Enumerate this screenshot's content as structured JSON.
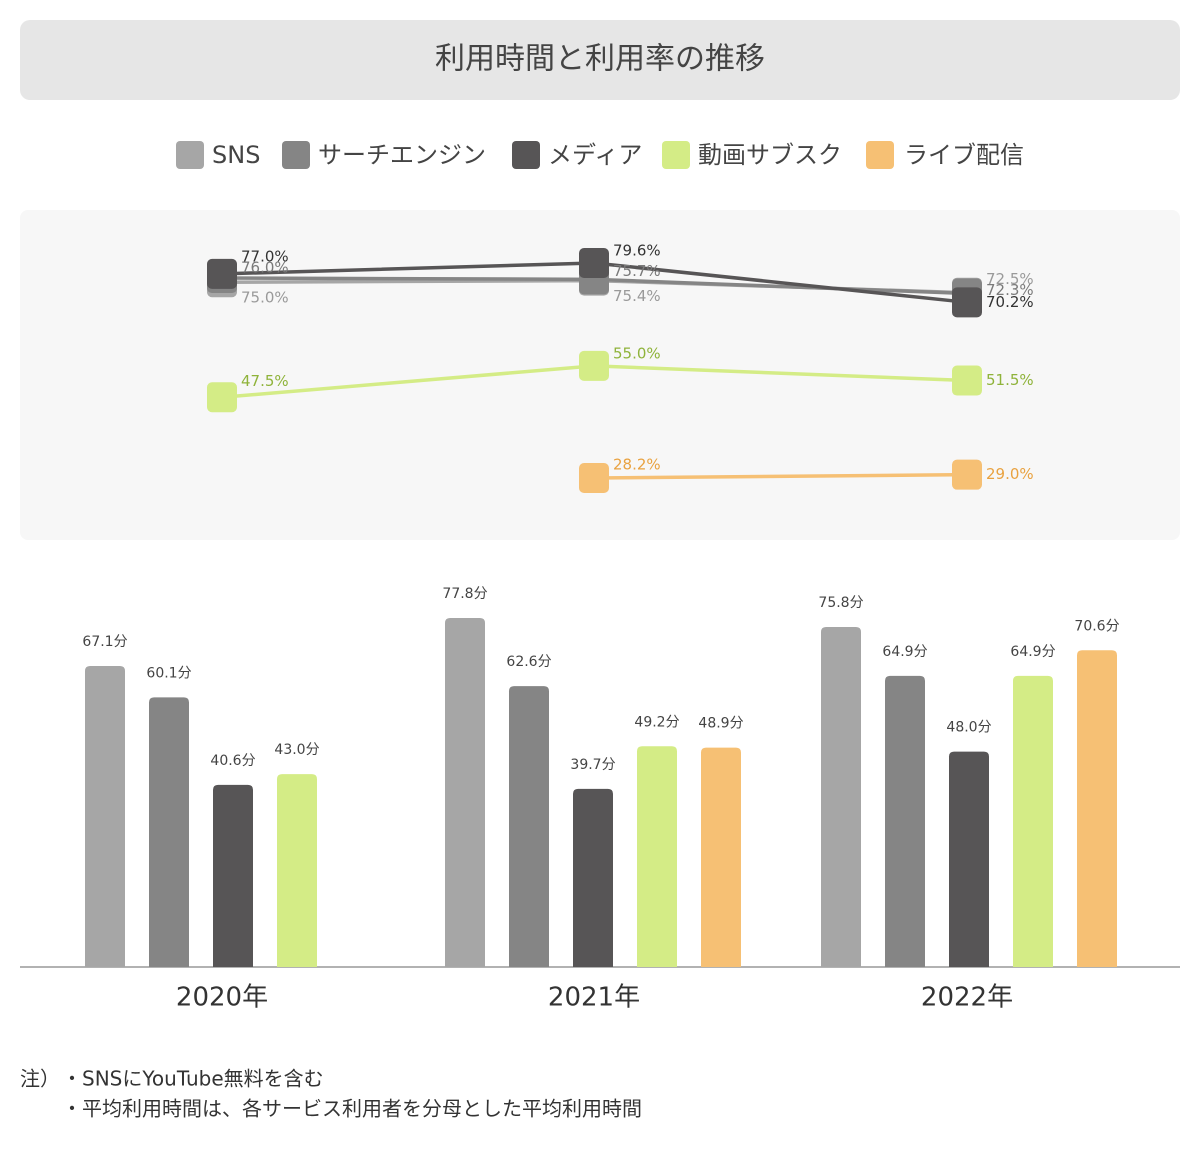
{
  "title": "利用時間と利用率の推移",
  "chart_data": [
    {
      "type": "line",
      "series": [
        {
          "name": "SNS",
          "color": "#a6a6a6",
          "label_color": "#9a9a9a",
          "values": [
            75.0,
            75.4,
            72.5
          ],
          "value_labels": [
            "75.0%",
            "75.4%",
            "72.5%"
          ]
        },
        {
          "name": "サーチエンジン",
          "color": "#858585",
          "label_color": "#7a7a7a",
          "values": [
            76.0,
            75.7,
            72.3
          ],
          "value_labels": [
            "76.0%",
            "75.7%",
            "72.3%"
          ]
        },
        {
          "name": "メディア",
          "color": "#575556",
          "label_color": "#333333",
          "values": [
            77.0,
            79.6,
            70.2
          ],
          "value_labels": [
            "77.0%",
            "79.6%",
            "70.2%"
          ]
        },
        {
          "name": "動画サブスク",
          "color": "#d4ec86",
          "label_color": "#8fb33a",
          "values": [
            47.5,
            55.0,
            51.5
          ],
          "value_labels": [
            "47.5%",
            "55.0%",
            "51.5%"
          ]
        },
        {
          "name": "ライブ配信",
          "color": "#f6c074",
          "label_color": "#e9a240",
          "values": [
            null,
            28.2,
            29.0
          ],
          "value_labels": [
            null,
            "28.2%",
            "29.0%"
          ]
        }
      ]
    },
    {
      "type": "bar",
      "categories": [
        "2020年",
        "2021年",
        "2022年"
      ],
      "series": [
        {
          "color": "#a6a6a6",
          "values": [
            67.1,
            77.8,
            75.8
          ],
          "value_labels": [
            "67.1分",
            "77.8分",
            "75.8分"
          ]
        },
        {
          "color": "#858585",
          "values": [
            60.1,
            62.6,
            64.9
          ],
          "value_labels": [
            "60.1分",
            "62.6分",
            "64.9分"
          ]
        },
        {
          "color": "#575556",
          "values": [
            40.6,
            39.7,
            48.0
          ],
          "value_labels": [
            "40.6分",
            "39.7分",
            "48.0分"
          ]
        },
        {
          "color": "#d4ec86",
          "values": [
            43.0,
            49.2,
            64.9
          ],
          "value_labels": [
            "43.0分",
            "49.2分",
            "64.9分"
          ]
        },
        {
          "color": "#f6c074",
          "values": [
            null,
            48.9,
            70.6
          ],
          "value_labels": [
            null,
            "48.9分",
            "70.6分"
          ]
        }
      ]
    }
  ],
  "notes": {
    "prefix": "注）",
    "lines": [
      "・SNSにYouTube無料を含む",
      "・平均利用時間は、各サービス利用者を分母とした平均利用時間"
    ]
  }
}
